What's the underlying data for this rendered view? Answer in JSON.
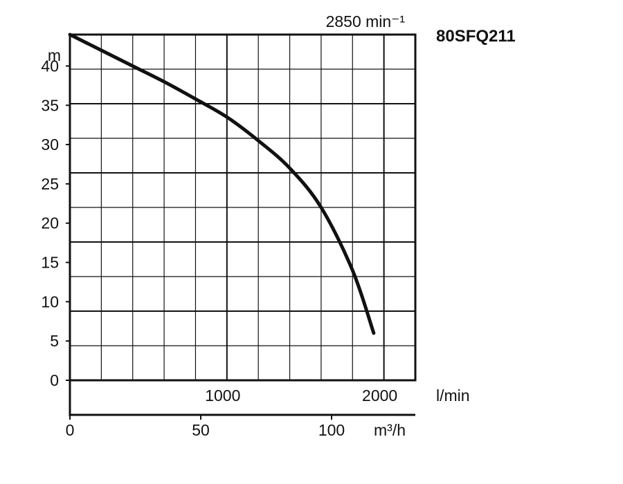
{
  "chart_data": {
    "type": "line",
    "title": "80SFQ211",
    "subtitle": "2850 min⁻¹",
    "ylabel": "m",
    "xlabel": "l/min",
    "x2label": "m³/h",
    "xlim": [
      0,
      2200
    ],
    "ylim": [
      0,
      44
    ],
    "grid": true,
    "x_ticks": [
      1000,
      2000
    ],
    "x2_ticks": [
      0,
      50,
      100
    ],
    "y_ticks": [
      0,
      5,
      10,
      15,
      20,
      25,
      30,
      35,
      40
    ],
    "series": [
      {
        "x": [
          0,
          200,
          400,
          600,
          800,
          1000,
          1200,
          1400,
          1600,
          1800,
          1935
        ],
        "y": [
          44,
          42,
          40,
          38,
          35.8,
          33.5,
          30.5,
          27,
          22,
          14,
          6
        ]
      }
    ]
  }
}
